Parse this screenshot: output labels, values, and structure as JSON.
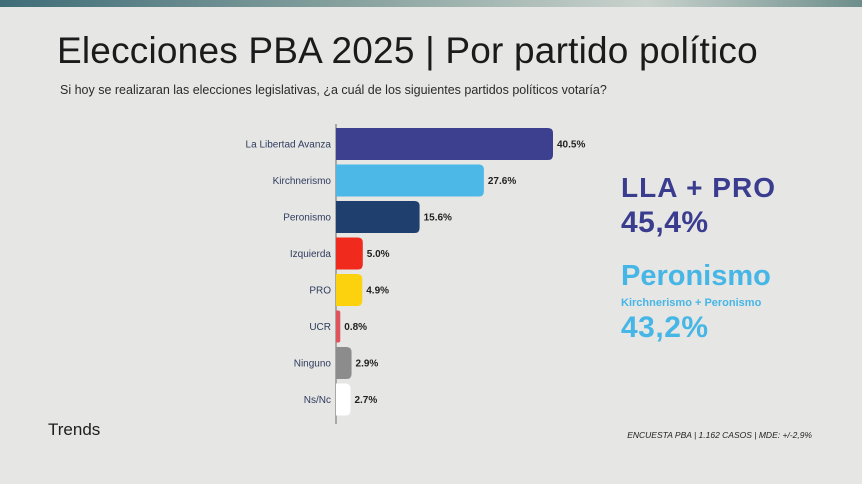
{
  "header": {
    "title": "Elecciones PBA 2025 | Por partido político",
    "subtitle": "Si hoy se realizaran las elecciones legislativas, ¿a cuál de los siguientes partidos políticos votaría?"
  },
  "side_panel": {
    "alliance_label": "LLA + PRO",
    "alliance_value": "45,4%",
    "peronismo_label": "Peronismo",
    "peronismo_detail": "Kirchnerismo + Peronismo",
    "peronismo_value": "43,2%"
  },
  "footer": {
    "brand": "Trends",
    "note": "ENCUESTA PBA | 1.162 CASOS | MDE: +/-2,9%"
  },
  "colors": {
    "lla": "#3d3f8f",
    "kirchnerismo": "#4bb8e8",
    "peronismo": "#1f3f6e",
    "izquierda": "#f02a1c",
    "pro": "#fcd20f",
    "ucr": "#e0535a",
    "ninguno": "#8c8c8c",
    "nsnc": "#ffffff"
  },
  "chart_data": {
    "type": "bar",
    "orientation": "horizontal",
    "categories": [
      "La Libertad Avanza",
      "Kirchnerismo",
      "Peronismo",
      "Izquierda",
      "PRO",
      "UCR",
      "Ninguno",
      "Ns/Nc"
    ],
    "values": [
      40.5,
      27.6,
      15.6,
      5.0,
      4.9,
      0.8,
      2.9,
      2.7
    ],
    "value_labels": [
      "40.5%",
      "27.6%",
      "15.6%",
      "5.0%",
      "4.9%",
      "0.8%",
      "2.9%",
      "2.7%"
    ],
    "bar_colors": [
      "#3d3f8f",
      "#4bb8e8",
      "#1f3f6e",
      "#f02a1c",
      "#fcd20f",
      "#e0535a",
      "#8c8c8c",
      "#ffffff"
    ],
    "title": "Elecciones PBA 2025 | Por partido político",
    "xlim": [
      0,
      40.5
    ],
    "grid": false,
    "legend": "none"
  }
}
